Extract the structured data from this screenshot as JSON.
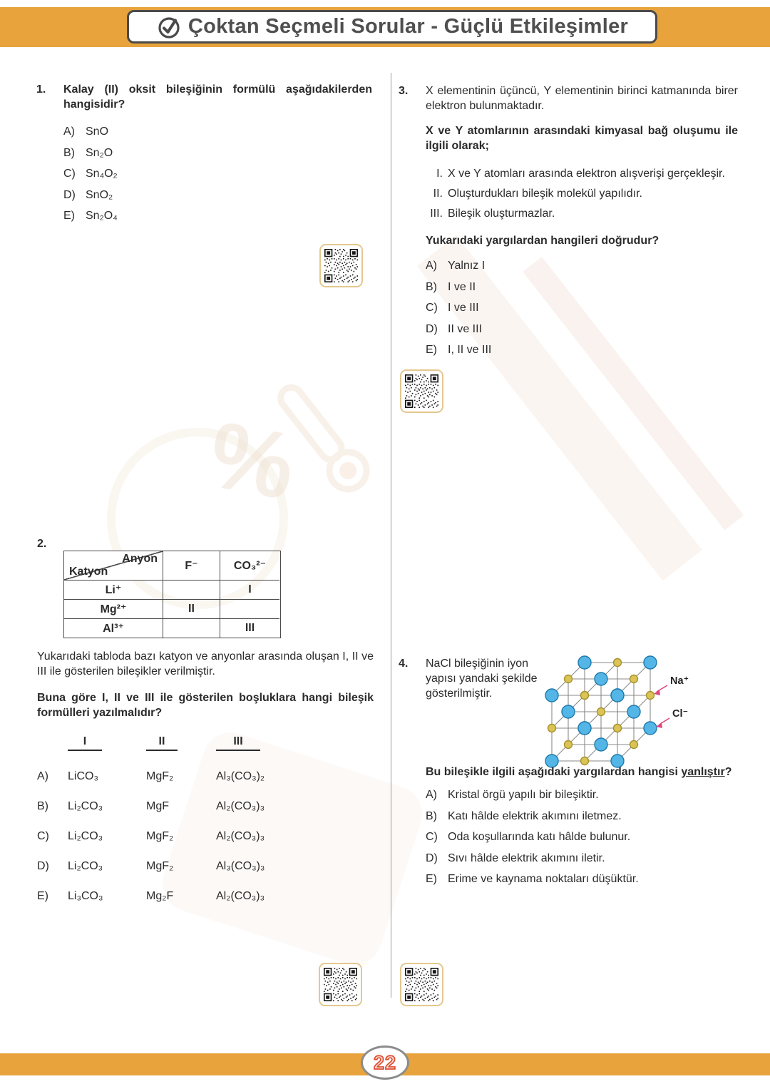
{
  "header": {
    "title": "Çoktan Seçmeli Sorular - Güçlü Etkileşimler"
  },
  "footer": {
    "page_number": "22"
  },
  "decor": {
    "percent": "%"
  },
  "questions": {
    "q1": {
      "number": "1.",
      "text": "Kalay (II) oksit bileşiğinin formülü aşağıdakilerden hangisidir?",
      "options": [
        {
          "label": "A)",
          "text": "SnO"
        },
        {
          "label": "B)",
          "text": "Sn₂O"
        },
        {
          "label": "C)",
          "text": "Sn₄O₂"
        },
        {
          "label": "D)",
          "text": "SnO₂"
        },
        {
          "label": "E)",
          "text": "Sn₂O₄"
        }
      ]
    },
    "q2": {
      "number": "2.",
      "table": {
        "anyon": "Anyon",
        "katyon": "Katyon",
        "col_f": "F⁻",
        "col_co3": "CO₃²⁻",
        "rows": [
          {
            "cation": "Li⁺",
            "f": "",
            "co3": "I"
          },
          {
            "cation": "Mg²⁺",
            "f": "II",
            "co3": ""
          },
          {
            "cation": "Al³⁺",
            "f": "",
            "co3": "III"
          }
        ]
      },
      "paragraph": "Yukarıdaki tabloda bazı katyon ve anyonlar arasında oluşan I, II ve III ile gösterilen bileşikler verilmiştir.",
      "question": "Buna göre I, II ve III ile gösterilen boşluklara hangi bileşik formülleri yazılmalıdır?",
      "headers": [
        "I",
        "II",
        "III"
      ],
      "options": [
        {
          "label": "A)",
          "i": "LiCO₃",
          "ii": "MgF₂",
          "iii": "Al₃(CO₃)₂"
        },
        {
          "label": "B)",
          "i": "Li₂CO₃",
          "ii": "MgF",
          "iii": "Al₂(CO₃)₃"
        },
        {
          "label": "C)",
          "i": "Li₂CO₃",
          "ii": "MgF₂",
          "iii": "Al₂(CO₃)₃"
        },
        {
          "label": "D)",
          "i": "Li₂CO₃",
          "ii": "MgF₂",
          "iii": "Al₃(CO₃)₃"
        },
        {
          "label": "E)",
          "i": "Li₃CO₃",
          "ii": "Mg₂F",
          "iii": "Al₂(CO₃)₃"
        }
      ]
    },
    "q3": {
      "number": "3.",
      "text": "X elementinin üçüncü, Y elementinin birinci katmanında birer elektron bulunmaktadır.",
      "lead": "X ve Y atomlarının arasındaki kimyasal bağ oluşumu ile ilgili olarak;",
      "items": [
        {
          "num": "I.",
          "text": "X ve Y atomları arasında elektron alışverişi gerçekleşir."
        },
        {
          "num": "II.",
          "text": "Oluşturdukları bileşik molekül yapılıdır."
        },
        {
          "num": "III.",
          "text": "Bileşik oluşturmazlar."
        }
      ],
      "question": "Yukarıdaki yargılardan hangileri doğrudur?",
      "options": [
        {
          "label": "A)",
          "text": "Yalnız I"
        },
        {
          "label": "B)",
          "text": "I ve II"
        },
        {
          "label": "C)",
          "text": "I ve III"
        },
        {
          "label": "D)",
          "text": "II ve III"
        },
        {
          "label": "E)",
          "text": "I, II ve III"
        }
      ]
    },
    "q4": {
      "number": "4.",
      "text": "NaCl bileşiğinin iyon yapısı yandaki şekilde gösterilmiştir.",
      "figure": {
        "na_label": "Na⁺",
        "cl_label": "Cl⁻",
        "na_color": "#D9C455",
        "na_stroke": "#A8922F",
        "cl_color": "#54B6E6",
        "cl_stroke": "#1E7AAB",
        "line_color": "#8a8a8a",
        "arrow_color": "#E0457E"
      },
      "question_prefix": "Bu bileşikle ilgili aşağıdaki yargılardan hangisi ",
      "question_underlined": "yanlıştır",
      "question_suffix": "?",
      "options": [
        {
          "label": "A)",
          "text": "Kristal örgü yapılı bir bileşiktir."
        },
        {
          "label": "B)",
          "text": "Katı hâlde elektrik akımını iletmez."
        },
        {
          "label": "C)",
          "text": "Oda koşullarında katı hâlde bulunur."
        },
        {
          "label": "D)",
          "text": "Sıvı hâlde elektrik akımını iletir."
        },
        {
          "label": "E)",
          "text": "Erime ve kaynama noktaları düşüktür."
        }
      ]
    }
  }
}
